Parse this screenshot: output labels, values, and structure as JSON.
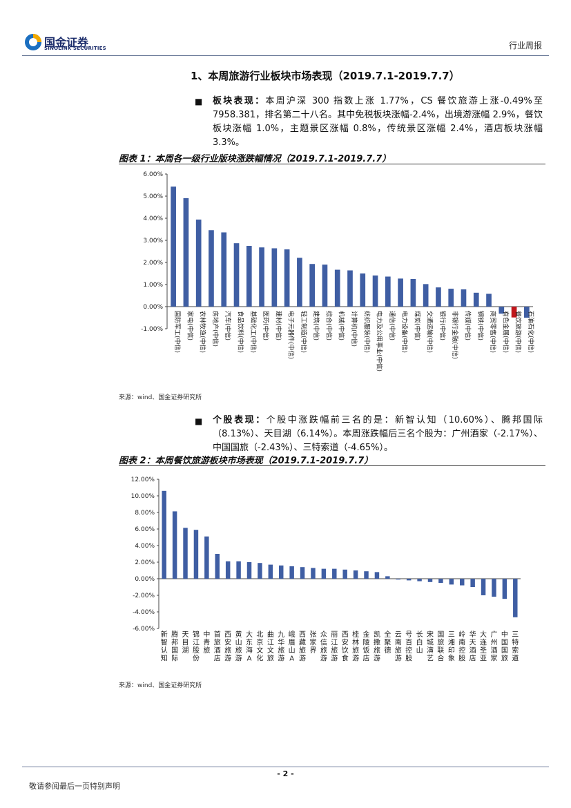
{
  "header": {
    "logo_cn": "国金证券",
    "logo_en": "SINOLINK SECURITIES",
    "report_type": "行业周报"
  },
  "section": {
    "title": "1、本周旅游行业板块市场表现（2019.7.1-2019.7.7）",
    "p1_label": "板块表现：",
    "p1_text": "本周沪深 300 指数上涨 1.77%，CS 餐饮旅游上涨-0.49%至 7958.381，排名第二十八名。其中免税板块涨幅-2.4%，出境游涨幅 2.9%，餐饮板块涨幅 1.0%，主题景区涨幅 0.8%，传统景区涨幅 2.4%，酒店板块涨幅 3.3%。",
    "p2_label": "个股表现：",
    "p2_text": "个股中涨跌幅前三名的是：新智认知（10.60%）、腾邦国际（8.13%）、天目湖（6.14%）。本周涨跌幅后三名个股为：广州酒家（-2.17%）、中国国旅（-2.43%）、三特索道（-4.65%）。"
  },
  "chart_data": [
    {
      "type": "bar",
      "title": "图表 1：本周各一级行业版块涨跌幅情况（2019.7.1-2019.7.7）",
      "source": "来源：wind、国金证券研究所",
      "ylim": [
        -0.01,
        0.06
      ],
      "yticks": [
        "6.00%",
        "5.00%",
        "4.00%",
        "3.00%",
        "2.00%",
        "1.00%",
        "0.00%",
        "-1.00%"
      ],
      "grid": false,
      "bar_color": "#3f5ea3",
      "highlight_color": "#c0161b",
      "highlight_index": 27,
      "categories": [
        "国防军工(中信)",
        "家电(中信)",
        "农林牧渔(中信)",
        "房地产(中信)",
        "汽车(中信)",
        "食品饮料(中信)",
        "基础化工(中信)",
        "医药(中信)",
        "建材(中信)",
        "电子元器件(中信)",
        "轻工制造(中信)",
        "建筑(中信)",
        "综合(中信)",
        "机械(中信)",
        "计算机(中信)",
        "纺织服装(中信)",
        "电力及公用事业(中信)",
        "通信(中信)",
        "电力设备(中信)",
        "煤炭(中信)",
        "交通运输(中信)",
        "银行(中信)",
        "非银行金融(中信)",
        "传媒(中信)",
        "钢铁(中信)",
        "商贸零售(中信)",
        "有色金属(中信)",
        "餐饮旅游(中信)",
        "石油石化(中信)"
      ],
      "values": [
        0.0543,
        0.0491,
        0.0394,
        0.0346,
        0.0336,
        0.0287,
        0.0275,
        0.0268,
        0.0264,
        0.0259,
        0.0221,
        0.0193,
        0.019,
        0.0167,
        0.0164,
        0.015,
        0.0141,
        0.0136,
        0.0127,
        0.0125,
        0.0102,
        0.0087,
        0.0081,
        0.0078,
        0.0063,
        0.0058,
        -0.0032,
        -0.0049,
        -0.005
      ]
    },
    {
      "type": "bar",
      "title": "图表 2：本周餐饮旅游板块市场表现（2019.7.1-2019.7.7）",
      "source": "来源：wind、国金证券研究所",
      "ylim": [
        -0.06,
        0.12
      ],
      "yticks": [
        "12.00%",
        "10.00%",
        "8.00%",
        "6.00%",
        "4.00%",
        "2.00%",
        "0.00%",
        "-2.00%",
        "-4.00%",
        "-6.00%"
      ],
      "grid": false,
      "bar_color": "#3f5ea3",
      "categories": [
        "新智认知",
        "腾邦国际",
        "天目湖",
        "锦江股份",
        "中青旅",
        "首旅酒店",
        "西安旅游",
        "黄山旅游",
        "大东海A",
        "北京文化",
        "曲江文旅",
        "九华旅游",
        "峨眉山A",
        "西藏旅游",
        "张家界",
        "众信旅游",
        "丽江旅游",
        "西安饮食",
        "桂林旅游",
        "金陵饭店",
        "凯撒旅游",
        "全聚德",
        "云南旅游",
        "号百控股",
        "长白山",
        "宋城演艺",
        "国旅联合",
        "三湘印象",
        "岭南控股",
        "华天酒店",
        "大连圣亚",
        "广州酒家",
        "中国国旅",
        "三特索道"
      ],
      "values": [
        0.106,
        0.0813,
        0.0614,
        0.059,
        0.051,
        0.03,
        0.021,
        0.021,
        0.02,
        0.019,
        0.017,
        0.016,
        0.015,
        0.014,
        0.013,
        0.012,
        0.012,
        0.011,
        0.01,
        0.009,
        0.008,
        0.003,
        -0.001,
        -0.002,
        -0.003,
        -0.004,
        -0.005,
        -0.007,
        -0.008,
        -0.01,
        -0.02,
        -0.0217,
        -0.0243,
        -0.0465
      ]
    }
  ],
  "footer": {
    "page": "- 2 -",
    "disclaimer": "敬请参阅最后一页特别声明"
  }
}
